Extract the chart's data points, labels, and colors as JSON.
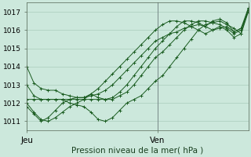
{
  "bg_color": "#cce8dc",
  "grid_color": "#aaccbb",
  "line_color": "#1a5c20",
  "marker_color": "#1a5c20",
  "title": "Pression niveau de la mer( hPa )",
  "xlabel_jeu": "Jeu",
  "xlabel_ven": "Ven",
  "ylim": [
    1010.5,
    1017.5
  ],
  "yticks": [
    1011,
    1012,
    1013,
    1014,
    1015,
    1016,
    1017
  ],
  "xlim": [
    0,
    44
  ],
  "x_jeu": 0,
  "x_ven": 26,
  "series": [
    [
      1014.0,
      1013.1,
      1012.8,
      1012.7,
      1012.7,
      1012.5,
      1012.4,
      1012.3,
      1012.3,
      1012.4,
      1012.5,
      1012.7,
      1013.0,
      1013.4,
      1013.8,
      1014.2,
      1014.6,
      1015.0,
      1015.4,
      1015.6,
      1015.8,
      1015.9,
      1016.1,
      1016.2,
      1016.3,
      1016.2,
      1016.5,
      1016.6,
      1016.4,
      1015.9,
      1016.1,
      1017.2
    ],
    [
      1012.2,
      1012.2,
      1012.2,
      1012.2,
      1012.2,
      1012.2,
      1012.0,
      1011.9,
      1011.8,
      1011.5,
      1011.1,
      1011.0,
      1011.2,
      1011.6,
      1012.0,
      1012.2,
      1012.4,
      1012.8,
      1013.2,
      1013.5,
      1014.0,
      1014.5,
      1015.0,
      1015.5,
      1016.0,
      1016.3,
      1016.4,
      1016.5,
      1016.3,
      1016.1,
      1015.8,
      1017.2
    ],
    [
      1013.0,
      1012.4,
      1012.2,
      1012.2,
      1012.2,
      1012.2,
      1012.2,
      1012.2,
      1012.2,
      1012.2,
      1012.2,
      1012.2,
      1012.2,
      1012.4,
      1012.6,
      1013.0,
      1013.5,
      1014.0,
      1014.5,
      1014.8,
      1015.2,
      1015.6,
      1016.0,
      1016.3,
      1016.5,
      1016.5,
      1016.4,
      1016.3,
      1016.1,
      1015.8,
      1016.0,
      1017.1
    ],
    [
      1012.0,
      1011.5,
      1011.1,
      1011.0,
      1011.2,
      1011.5,
      1011.8,
      1012.0,
      1012.2,
      1012.5,
      1012.8,
      1013.2,
      1013.6,
      1014.0,
      1014.4,
      1014.8,
      1015.2,
      1015.6,
      1016.0,
      1016.3,
      1016.5,
      1016.5,
      1016.4,
      1016.2,
      1016.0,
      1015.8,
      1016.0,
      1016.2,
      1016.0,
      1015.6,
      1015.8,
      1017.0
    ],
    [
      1011.8,
      1011.4,
      1011.0,
      1011.2,
      1011.6,
      1012.0,
      1012.2,
      1012.3,
      1012.3,
      1012.5,
      1012.3,
      1012.2,
      1012.3,
      1012.6,
      1013.0,
      1013.5,
      1014.0,
      1014.5,
      1015.0,
      1015.4,
      1015.8,
      1016.2,
      1016.5,
      1016.5,
      1016.4,
      1016.2,
      1016.0,
      1016.1,
      1016.2,
      1015.9,
      1016.1,
      1017.0
    ]
  ]
}
